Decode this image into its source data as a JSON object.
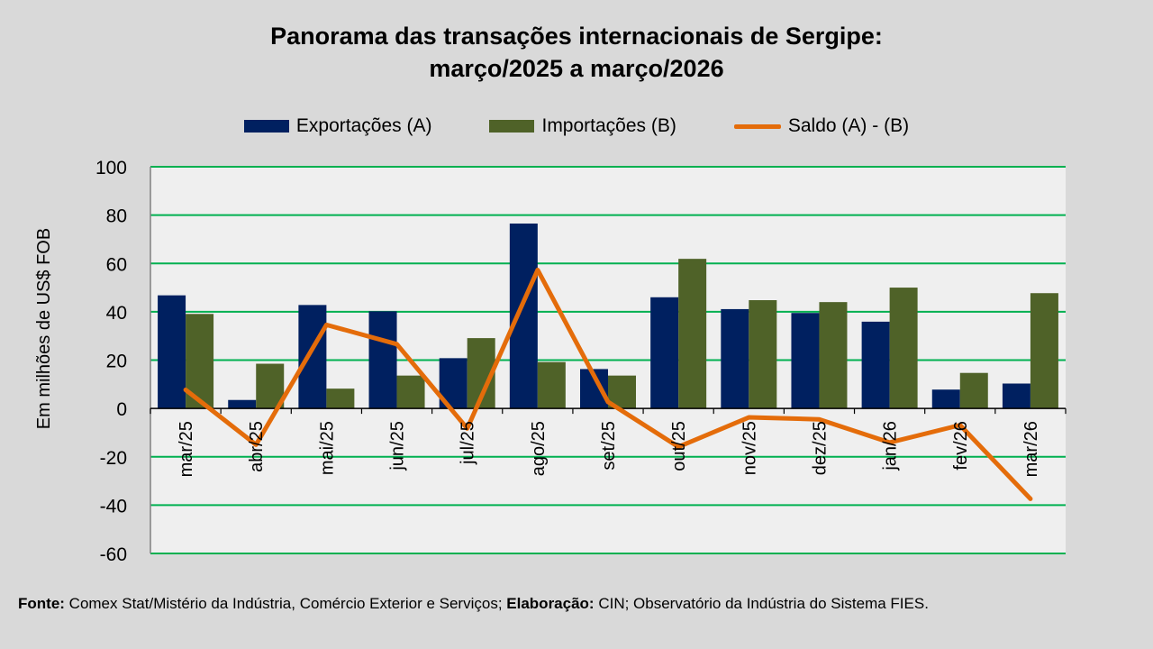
{
  "chart_data": {
    "type": "bar",
    "title_line1": "Panorama  das transações internacionais de Sergipe:",
    "title_line2": "março/2025 a março/2026",
    "ylabel": "Em milhões de US$ FOB",
    "xlabel": "",
    "ylim": [
      -60,
      100
    ],
    "yticks": [
      100,
      80,
      60,
      40,
      20,
      0,
      -20,
      -40,
      -60
    ],
    "grid": true,
    "legend_position": "top",
    "categories": [
      "mar/25",
      "abr/25",
      "mai/25",
      "jun/25",
      "jul/25",
      "ago/25",
      "set/25",
      "out/25",
      "nov/25",
      "dez/25",
      "jan/26",
      "fev/26",
      "mar/26"
    ],
    "series": [
      {
        "name": "Exportações (A)",
        "type": "bar",
        "color": "#002060",
        "values": [
          46.8,
          3.5,
          42.8,
          40.2,
          20.8,
          76.5,
          16.3,
          46.0,
          41.1,
          39.5,
          35.9,
          7.8,
          10.3
        ]
      },
      {
        "name": "Importações (B)",
        "type": "bar",
        "color": "#4f6228",
        "values": [
          39.1,
          18.5,
          8.2,
          13.6,
          29.1,
          19.2,
          13.6,
          61.9,
          44.8,
          44.0,
          50.0,
          14.7,
          47.7
        ]
      },
      {
        "name": "Saldo (A) - (B)",
        "type": "line",
        "color": "#e46c0a",
        "values": [
          7.7,
          -15.0,
          34.6,
          26.6,
          -8.3,
          57.3,
          2.7,
          -15.9,
          -3.7,
          -4.5,
          -14.1,
          -6.9,
          -37.4
        ]
      }
    ]
  },
  "source": {
    "label1": "Fonte:",
    "text1": " Comex Stat/Mistério da Indústria, Comércio Exterior e Serviços; ",
    "label2": "Elaboração:",
    "text2": " CIN; Observatório da Indústria do Sistema FIES."
  },
  "colors": {
    "background": "#d9d9d9",
    "plot_area": "#efefef",
    "grid": "#00b050"
  }
}
